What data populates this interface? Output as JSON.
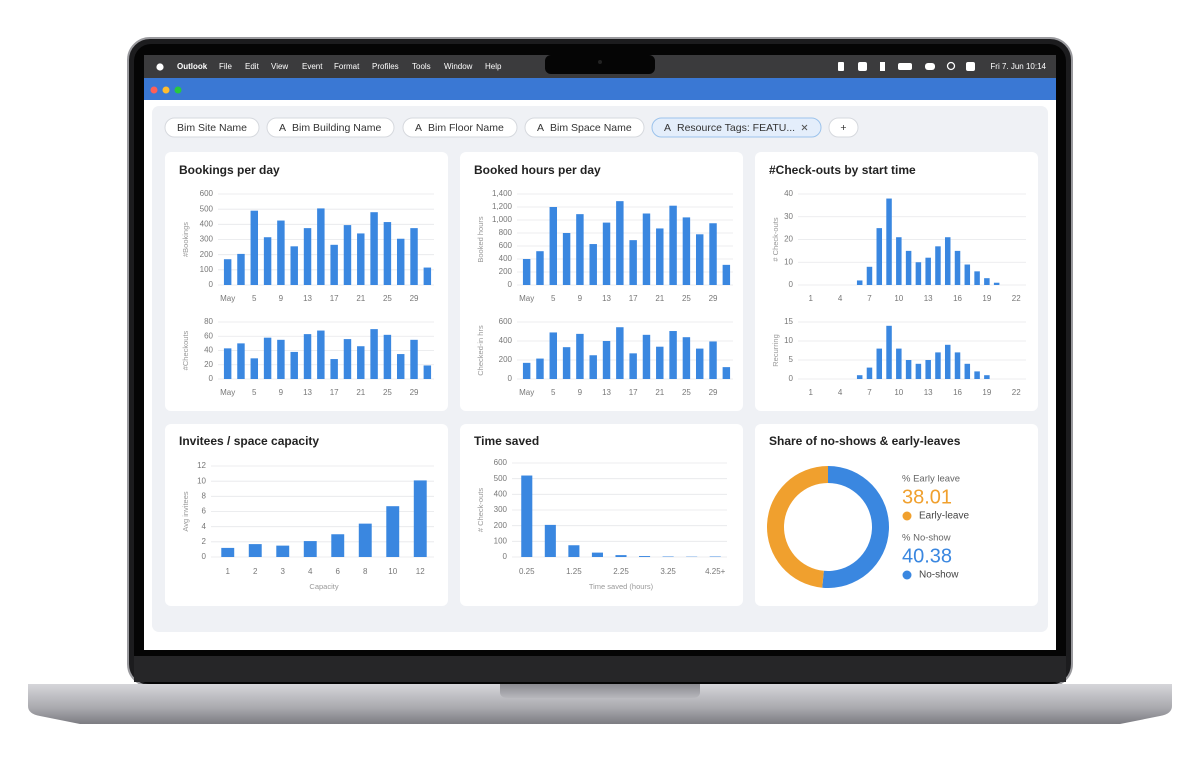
{
  "menubar": {
    "items": [
      "Outlook",
      "File",
      "Edit",
      "View",
      "Event",
      "Format",
      "Profiles",
      "Tools",
      "Window",
      "Help"
    ],
    "clock": "Fri 7. Jun 10:14"
  },
  "filters": [
    {
      "label": "Bim Site Name"
    },
    {
      "icon": "A",
      "label": "Bim Building Name"
    },
    {
      "icon": "A",
      "label": "Bim Floor Name"
    },
    {
      "icon": "A",
      "label": "Bim Space Name"
    },
    {
      "icon": "A",
      "label": "Resource Tags: FEATU..."
    },
    {
      "label": "+"
    }
  ],
  "chart_data": [
    {
      "type": "bar",
      "title": "Bookings per day",
      "y_label": "#Bookings",
      "color": "#3a87e0",
      "grid": true,
      "categories": [
        "May",
        null,
        "5",
        null,
        "9",
        null,
        "13",
        null,
        "17",
        null,
        "21",
        null,
        "25",
        null,
        "29",
        null
      ],
      "values": [
        170,
        205,
        490,
        315,
        425,
        255,
        375,
        505,
        265,
        395,
        340,
        480,
        415,
        305,
        375,
        115
      ],
      "ylim": [
        0,
        600
      ],
      "yticks": [
        0,
        100,
        200,
        300,
        400,
        500,
        600
      ]
    },
    {
      "type": "bar",
      "y_label": "#Checkouts",
      "color": "#3a87e0",
      "grid": true,
      "categories": [
        "May",
        null,
        "5",
        null,
        "9",
        null,
        "13",
        null,
        "17",
        null,
        "21",
        null,
        "25",
        null,
        "29",
        null
      ],
      "values": [
        43,
        50,
        29,
        58,
        55,
        38,
        63,
        68,
        28,
        56,
        46,
        70,
        62,
        35,
        55,
        19
      ],
      "ylim": [
        0,
        80
      ],
      "yticks": [
        0,
        20,
        40,
        60,
        80
      ]
    },
    {
      "type": "bar",
      "title": "Booked hours per day",
      "y_label": "Booked hours",
      "color": "#3a87e0",
      "grid": true,
      "categories": [
        "May",
        null,
        "5",
        null,
        "9",
        null,
        "13",
        null,
        "17",
        null,
        "21",
        null,
        "25",
        null,
        "29",
        null
      ],
      "values": [
        400,
        520,
        1200,
        800,
        1090,
        630,
        960,
        1290,
        690,
        1100,
        870,
        1220,
        1040,
        780,
        950,
        310
      ],
      "ylim": [
        0,
        1400
      ],
      "yticks": [
        0,
        200,
        400,
        600,
        800,
        {
          "value": 1000,
          "label": "1,000"
        },
        {
          "value": 1200,
          "label": "1,200"
        },
        {
          "value": 1400,
          "label": "1,400"
        }
      ]
    },
    {
      "type": "bar",
      "y_label": "Checked-in hrs",
      "color": "#3a87e0",
      "grid": true,
      "categories": [
        "May",
        null,
        "5",
        null,
        "9",
        null,
        "13",
        null,
        "17",
        null,
        "21",
        null,
        "25",
        null,
        "29",
        null
      ],
      "values": [
        170,
        215,
        490,
        335,
        475,
        250,
        400,
        545,
        270,
        465,
        340,
        505,
        440,
        320,
        395,
        125
      ],
      "ylim": [
        0,
        600
      ],
      "yticks": [
        0,
        200,
        400,
        600
      ]
    },
    {
      "type": "xbar",
      "title": "#Check-outs by start time",
      "y_label": "# Check-outs",
      "color": "#3a87e0",
      "grid": true,
      "x": [
        6,
        7,
        8,
        9,
        10,
        11,
        12,
        13,
        14,
        15,
        16,
        17,
        18,
        19,
        20
      ],
      "values": [
        2,
        8,
        25,
        38,
        21,
        15,
        10,
        12,
        17,
        21,
        15,
        9,
        6,
        3,
        1
      ],
      "xlim": [
        0,
        23
      ],
      "xticks": [
        1,
        4,
        7,
        10,
        13,
        16,
        19,
        22
      ],
      "ylim": [
        0,
        40
      ],
      "yticks": [
        0,
        10,
        20,
        30,
        40
      ]
    },
    {
      "type": "xbar",
      "y_label": "Recurring",
      "color": "#3a87e0",
      "grid": true,
      "x": [
        6,
        7,
        8,
        9,
        10,
        11,
        12,
        13,
        14,
        15,
        16,
        17,
        18,
        19
      ],
      "values": [
        1,
        3,
        8,
        14,
        8,
        5,
        4,
        5,
        7,
        9,
        7,
        4,
        2,
        1
      ],
      "xlim": [
        0,
        23
      ],
      "xticks": [
        1,
        4,
        7,
        10,
        13,
        16,
        19,
        22
      ],
      "ylim": [
        0,
        15
      ],
      "yticks": [
        0,
        5,
        10,
        15
      ]
    },
    {
      "type": "bar",
      "title": "Invitees / space capacity",
      "y_label": "Avg invitees",
      "x_label": "Capacity",
      "color": "#3a87e0",
      "grid": true,
      "categories": [
        "1",
        "2",
        "3",
        "4",
        "6",
        "8",
        "10",
        "12"
      ],
      "values": [
        1.2,
        1.7,
        1.5,
        2.1,
        3.0,
        4.4,
        6.7,
        10.1
      ],
      "ylim": [
        0,
        12
      ],
      "yticks": [
        0,
        2,
        4,
        6,
        8,
        10,
        12
      ]
    },
    {
      "type": "bar",
      "title": "Time saved",
      "y_label": "# Check-outs",
      "x_label": "Time saved (hours)",
      "color": "#3a87e0",
      "grid": true,
      "categories": [
        "0.25",
        null,
        "1.25",
        null,
        "2.25",
        null,
        "3.25",
        null,
        "4.25+"
      ],
      "values": [
        520,
        205,
        75,
        28,
        12,
        6,
        3,
        2,
        3
      ],
      "ylim": [
        0,
        600
      ],
      "yticks": [
        0,
        100,
        200,
        300,
        400,
        500,
        600
      ]
    },
    {
      "type": "donut",
      "title": "Share of no-shows & early-leaves",
      "categories": [
        "Early-leave",
        "No-show"
      ],
      "value_titles": [
        "% Early leave",
        "% No-show"
      ],
      "values": [
        38.01,
        40.38
      ],
      "colors": [
        "#f0a02e",
        "#3a87e0"
      ]
    }
  ]
}
